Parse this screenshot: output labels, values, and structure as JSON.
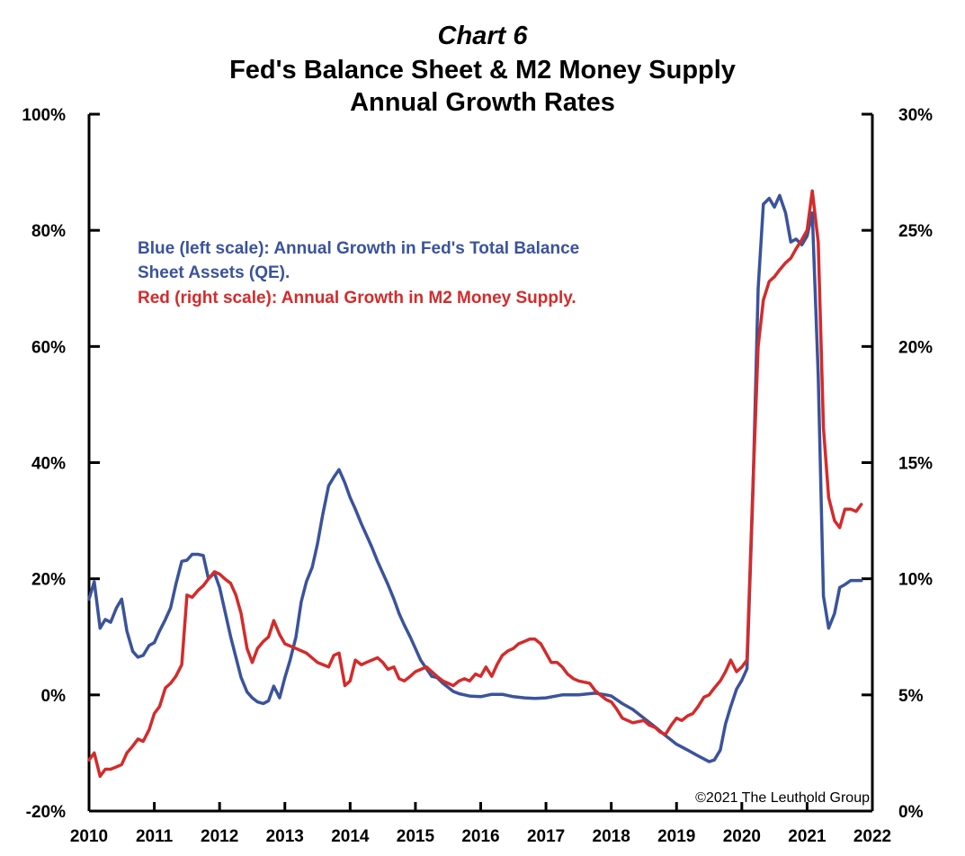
{
  "chart_data": {
    "type": "line",
    "title": "Chart 6",
    "subtitle": [
      "Fed's Balance Sheet & M2 Money Supply",
      "Annual Growth Rates"
    ],
    "x_ticks": [
      "2010",
      "2011",
      "2012",
      "2013",
      "2014",
      "2015",
      "2016",
      "2017",
      "2018",
      "2019",
      "2020",
      "2021",
      "2022"
    ],
    "xlim": [
      2010,
      2022
    ],
    "left_axis": {
      "ylim": [
        -20,
        100
      ],
      "ticks": [
        "-20%",
        "0%",
        "20%",
        "40%",
        "60%",
        "80%",
        "100%"
      ],
      "tick_values": [
        -20,
        0,
        20,
        40,
        60,
        80,
        100
      ]
    },
    "right_axis": {
      "ylim": [
        0,
        30
      ],
      "ticks": [
        "0%",
        "5%",
        "10%",
        "15%",
        "20%",
        "25%",
        "30%"
      ],
      "tick_values": [
        0,
        5,
        10,
        15,
        20,
        25,
        30
      ]
    },
    "legend": {
      "placement": "upper-left inside plot",
      "blue": [
        "Blue (left scale): Annual Growth in Fed's Total Balance",
        "Sheet Assets (QE)."
      ],
      "red": "Red (right scale): Annual Growth in M2 Money Supply."
    },
    "credit": "©2021 The Leuthold Group",
    "grid": false,
    "series": [
      {
        "name": "Annual Growth in Fed's Total Balance Sheet Assets (QE)",
        "axis": "left",
        "color": "#3A539B",
        "points": [
          [
            2010.0,
            16.5
          ],
          [
            2010.08,
            19.5
          ],
          [
            2010.17,
            11.5
          ],
          [
            2010.25,
            13
          ],
          [
            2010.33,
            12.5
          ],
          [
            2010.42,
            15
          ],
          [
            2010.5,
            16.5
          ],
          [
            2010.58,
            11
          ],
          [
            2010.67,
            7.5
          ],
          [
            2010.75,
            6.5
          ],
          [
            2010.83,
            6.8
          ],
          [
            2010.92,
            8.5
          ],
          [
            2011.0,
            9
          ],
          [
            2011.08,
            11
          ],
          [
            2011.17,
            13
          ],
          [
            2011.25,
            15
          ],
          [
            2011.33,
            19
          ],
          [
            2011.42,
            23
          ],
          [
            2011.5,
            23.2
          ],
          [
            2011.58,
            24.2
          ],
          [
            2011.67,
            24.2
          ],
          [
            2011.75,
            24
          ],
          [
            2011.83,
            20
          ],
          [
            2011.92,
            21
          ],
          [
            2012.0,
            18.5
          ],
          [
            2012.08,
            14.5
          ],
          [
            2012.17,
            10
          ],
          [
            2012.25,
            6.5
          ],
          [
            2012.33,
            3
          ],
          [
            2012.42,
            0.5
          ],
          [
            2012.5,
            -0.5
          ],
          [
            2012.58,
            -1.2
          ],
          [
            2012.67,
            -1.5
          ],
          [
            2012.75,
            -1
          ],
          [
            2012.83,
            1.5
          ],
          [
            2012.92,
            -0.5
          ],
          [
            2013.0,
            3
          ],
          [
            2013.08,
            6
          ],
          [
            2013.17,
            10
          ],
          [
            2013.25,
            16
          ],
          [
            2013.33,
            19.5
          ],
          [
            2013.42,
            22
          ],
          [
            2013.5,
            26
          ],
          [
            2013.58,
            31
          ],
          [
            2013.67,
            36
          ],
          [
            2013.75,
            37.5
          ],
          [
            2013.83,
            38.8
          ],
          [
            2013.92,
            36.5
          ],
          [
            2014.0,
            34
          ],
          [
            2014.08,
            32
          ],
          [
            2014.17,
            29.5
          ],
          [
            2014.25,
            27.5
          ],
          [
            2014.33,
            25.5
          ],
          [
            2014.42,
            23
          ],
          [
            2014.5,
            21
          ],
          [
            2014.58,
            19
          ],
          [
            2014.67,
            16.5
          ],
          [
            2014.75,
            14
          ],
          [
            2014.83,
            12
          ],
          [
            2014.92,
            10
          ],
          [
            2015.0,
            8
          ],
          [
            2015.08,
            6
          ],
          [
            2015.17,
            4.5
          ],
          [
            2015.25,
            3.2
          ],
          [
            2015.33,
            3
          ],
          [
            2015.42,
            2
          ],
          [
            2015.5,
            1.3
          ],
          [
            2015.58,
            0.6
          ],
          [
            2015.67,
            0.2
          ],
          [
            2015.75,
            0
          ],
          [
            2015.83,
            -0.2
          ],
          [
            2016.0,
            -0.3
          ],
          [
            2016.17,
            0.1
          ],
          [
            2016.33,
            0.1
          ],
          [
            2016.5,
            -0.3
          ],
          [
            2016.67,
            -0.5
          ],
          [
            2016.83,
            -0.6
          ],
          [
            2017.0,
            -0.5
          ],
          [
            2017.25,
            0
          ],
          [
            2017.5,
            0
          ],
          [
            2017.75,
            0.3
          ],
          [
            2017.92,
            0
          ],
          [
            2018.0,
            -0.2
          ],
          [
            2018.17,
            -1.5
          ],
          [
            2018.33,
            -2.5
          ],
          [
            2018.5,
            -4
          ],
          [
            2018.67,
            -5.5
          ],
          [
            2018.83,
            -7
          ],
          [
            2019.0,
            -8.5
          ],
          [
            2019.17,
            -9.5
          ],
          [
            2019.33,
            -10.5
          ],
          [
            2019.5,
            -11.5
          ],
          [
            2019.58,
            -11.2
          ],
          [
            2019.67,
            -9.5
          ],
          [
            2019.75,
            -5
          ],
          [
            2019.83,
            -2
          ],
          [
            2019.92,
            1
          ],
          [
            2020.0,
            2.5
          ],
          [
            2020.08,
            4.5
          ],
          [
            2020.17,
            35
          ],
          [
            2020.25,
            70
          ],
          [
            2020.33,
            84.5
          ],
          [
            2020.42,
            85.5
          ],
          [
            2020.5,
            84
          ],
          [
            2020.58,
            86
          ],
          [
            2020.67,
            83
          ],
          [
            2020.75,
            78
          ],
          [
            2020.83,
            78.5
          ],
          [
            2020.92,
            77.5
          ],
          [
            2021.0,
            79
          ],
          [
            2021.08,
            83
          ],
          [
            2021.17,
            55
          ],
          [
            2021.25,
            17
          ],
          [
            2021.33,
            11.5
          ],
          [
            2021.42,
            14
          ],
          [
            2021.5,
            18.5
          ],
          [
            2021.58,
            19
          ],
          [
            2021.67,
            19.7
          ],
          [
            2021.75,
            19.7
          ],
          [
            2021.83,
            19.7
          ]
        ]
      },
      {
        "name": "Annual Growth in M2 Money Supply",
        "axis": "right",
        "color": "#D42B2B",
        "points": [
          [
            2010.0,
            2.2
          ],
          [
            2010.08,
            2.5
          ],
          [
            2010.17,
            1.5
          ],
          [
            2010.25,
            1.8
          ],
          [
            2010.33,
            1.8
          ],
          [
            2010.42,
            1.9
          ],
          [
            2010.5,
            2.0
          ],
          [
            2010.58,
            2.5
          ],
          [
            2010.67,
            2.8
          ],
          [
            2010.75,
            3.1
          ],
          [
            2010.83,
            3.0
          ],
          [
            2010.92,
            3.5
          ],
          [
            2011.0,
            4.2
          ],
          [
            2011.08,
            4.5
          ],
          [
            2011.17,
            5.3
          ],
          [
            2011.25,
            5.5
          ],
          [
            2011.33,
            5.8
          ],
          [
            2011.42,
            6.3
          ],
          [
            2011.5,
            9.3
          ],
          [
            2011.58,
            9.2
          ],
          [
            2011.67,
            9.5
          ],
          [
            2011.75,
            9.7
          ],
          [
            2011.83,
            10.0
          ],
          [
            2011.92,
            10.3
          ],
          [
            2012.0,
            10.2
          ],
          [
            2012.08,
            10.0
          ],
          [
            2012.17,
            9.8
          ],
          [
            2012.25,
            9.3
          ],
          [
            2012.33,
            8.5
          ],
          [
            2012.42,
            7.0
          ],
          [
            2012.5,
            6.4
          ],
          [
            2012.58,
            7.0
          ],
          [
            2012.67,
            7.3
          ],
          [
            2012.75,
            7.5
          ],
          [
            2012.83,
            8.2
          ],
          [
            2012.92,
            7.6
          ],
          [
            2013.0,
            7.2
          ],
          [
            2013.17,
            7.0
          ],
          [
            2013.33,
            6.8
          ],
          [
            2013.5,
            6.4
          ],
          [
            2013.67,
            6.2
          ],
          [
            2013.75,
            6.7
          ],
          [
            2013.83,
            6.8
          ],
          [
            2013.92,
            5.4
          ],
          [
            2014.0,
            5.6
          ],
          [
            2014.08,
            6.5
          ],
          [
            2014.17,
            6.3
          ],
          [
            2014.25,
            6.4
          ],
          [
            2014.42,
            6.6
          ],
          [
            2014.5,
            6.4
          ],
          [
            2014.58,
            6.1
          ],
          [
            2014.67,
            6.2
          ],
          [
            2014.75,
            5.7
          ],
          [
            2014.83,
            5.6
          ],
          [
            2014.92,
            5.8
          ],
          [
            2015.0,
            6.0
          ],
          [
            2015.17,
            6.2
          ],
          [
            2015.25,
            6.0
          ],
          [
            2015.33,
            5.8
          ],
          [
            2015.42,
            5.6
          ],
          [
            2015.5,
            5.5
          ],
          [
            2015.58,
            5.4
          ],
          [
            2015.67,
            5.6
          ],
          [
            2015.75,
            5.7
          ],
          [
            2015.83,
            5.6
          ],
          [
            2015.92,
            5.9
          ],
          [
            2016.0,
            5.8
          ],
          [
            2016.08,
            6.2
          ],
          [
            2016.17,
            5.8
          ],
          [
            2016.25,
            6.3
          ],
          [
            2016.33,
            6.7
          ],
          [
            2016.42,
            6.9
          ],
          [
            2016.5,
            7.0
          ],
          [
            2016.58,
            7.2
          ],
          [
            2016.67,
            7.3
          ],
          [
            2016.75,
            7.4
          ],
          [
            2016.83,
            7.4
          ],
          [
            2016.92,
            7.2
          ],
          [
            2017.0,
            6.8
          ],
          [
            2017.08,
            6.4
          ],
          [
            2017.17,
            6.4
          ],
          [
            2017.25,
            6.2
          ],
          [
            2017.33,
            5.9
          ],
          [
            2017.42,
            5.7
          ],
          [
            2017.5,
            5.6
          ],
          [
            2017.67,
            5.5
          ],
          [
            2017.75,
            5.2
          ],
          [
            2017.83,
            5.0
          ],
          [
            2017.92,
            4.8
          ],
          [
            2018.0,
            4.7
          ],
          [
            2018.08,
            4.4
          ],
          [
            2018.17,
            4.0
          ],
          [
            2018.33,
            3.8
          ],
          [
            2018.5,
            3.9
          ],
          [
            2018.58,
            3.7
          ],
          [
            2018.67,
            3.6
          ],
          [
            2018.75,
            3.4
          ],
          [
            2018.83,
            3.3
          ],
          [
            2018.92,
            3.7
          ],
          [
            2019.0,
            4.0
          ],
          [
            2019.08,
            3.9
          ],
          [
            2019.17,
            4.1
          ],
          [
            2019.25,
            4.2
          ],
          [
            2019.33,
            4.5
          ],
          [
            2019.42,
            4.9
          ],
          [
            2019.5,
            5.0
          ],
          [
            2019.58,
            5.3
          ],
          [
            2019.67,
            5.6
          ],
          [
            2019.75,
            6.0
          ],
          [
            2019.83,
            6.5
          ],
          [
            2019.92,
            6.0
          ],
          [
            2020.0,
            6.2
          ],
          [
            2020.08,
            6.5
          ],
          [
            2020.17,
            14
          ],
          [
            2020.25,
            20
          ],
          [
            2020.33,
            22
          ],
          [
            2020.42,
            22.8
          ],
          [
            2020.5,
            23.0
          ],
          [
            2020.58,
            23.3
          ],
          [
            2020.67,
            23.6
          ],
          [
            2020.75,
            23.8
          ],
          [
            2020.83,
            24.2
          ],
          [
            2020.92,
            24.6
          ],
          [
            2021.0,
            25.0
          ],
          [
            2021.08,
            26.7
          ],
          [
            2021.17,
            24.5
          ],
          [
            2021.25,
            16.5
          ],
          [
            2021.33,
            13.5
          ],
          [
            2021.42,
            12.5
          ],
          [
            2021.5,
            12.2
          ],
          [
            2021.58,
            13.0
          ],
          [
            2021.67,
            13.0
          ],
          [
            2021.75,
            12.9
          ],
          [
            2021.83,
            13.2
          ]
        ]
      }
    ]
  }
}
